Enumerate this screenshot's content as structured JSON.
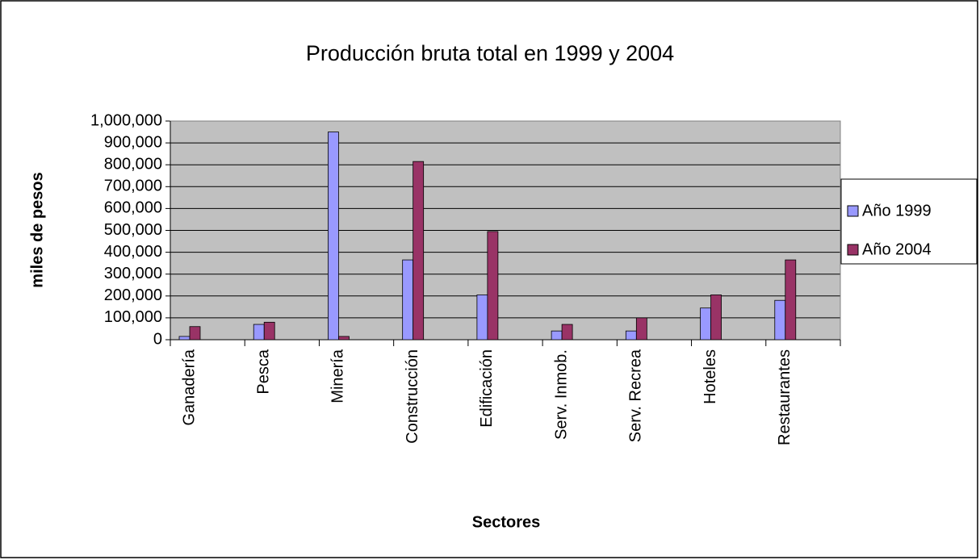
{
  "chart_data": {
    "type": "bar",
    "title": "Producción bruta total en 1999 y 2004",
    "x_label": "Sectores",
    "y_label": "miles de pesos",
    "categories": [
      "Ganadería",
      "Pesca",
      "Minería",
      "Construcción",
      "Edificación",
      "Serv. Inmob.",
      "Serv. Recrea",
      "Hoteles",
      "Restaurantes"
    ],
    "series": [
      {
        "name": "Año 1999",
        "color": "#9999ff",
        "values": [
          15000,
          70000,
          950000,
          365000,
          205000,
          40000,
          40000,
          145000,
          180000
        ]
      },
      {
        "name": "Año 2004",
        "color": "#993366",
        "values": [
          60000,
          80000,
          15000,
          815000,
          495000,
          70000,
          100000,
          205000,
          365000
        ]
      }
    ],
    "ylim": [
      0,
      1000000
    ],
    "yticks": [
      0,
      {
        "value": 100000,
        "label": "100,000"
      },
      {
        "value": 200000,
        "label": "200,000"
      },
      {
        "value": 300000,
        "label": "300,000"
      },
      {
        "value": 400000,
        "label": "400,000"
      },
      {
        "value": 500000,
        "label": "500,000"
      },
      {
        "value": 600000,
        "label": "600,000"
      },
      {
        "value": 700000,
        "label": "700,000"
      },
      {
        "value": 800000,
        "label": "800,000"
      },
      {
        "value": 900000,
        "label": "900,000"
      },
      {
        "value": 1000000,
        "label": "1,000,000"
      }
    ],
    "grid": true,
    "plot_background": "#c0c0c0",
    "legend": "right"
  }
}
